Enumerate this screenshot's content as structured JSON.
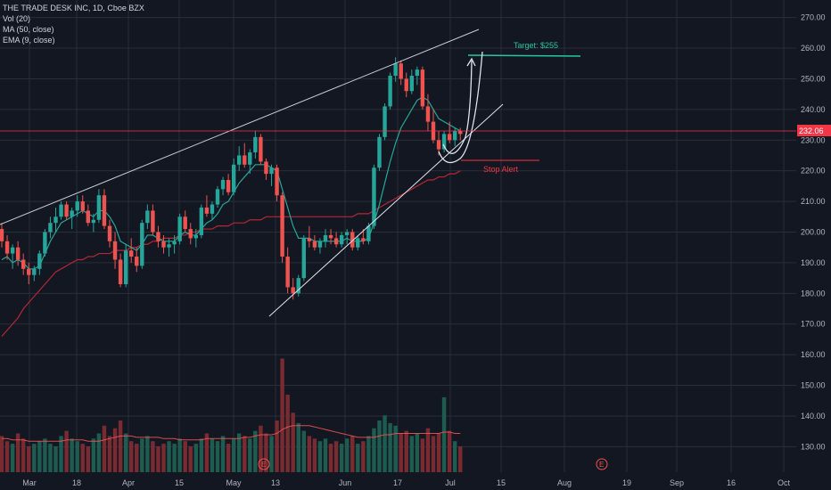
{
  "legend": {
    "symbol": "THE TRADE DESK INC, 1D, Cboe BZX",
    "vol": "Vol (20)",
    "ma": "MA (50, close)",
    "ema": "EMA (9, close)"
  },
  "price_label": "232.06",
  "target_label": "Target: $255",
  "stop_label": "Stop Alert",
  "earnings_badge": "E",
  "colors": {
    "background": "#131722",
    "up": "#26a69a",
    "down": "#ef5350",
    "ma": "#b22833",
    "ema": "#26a69a",
    "target": "#26c6a2",
    "price_line": "#f23645"
  },
  "chart_data": {
    "type": "candlestick",
    "title": "THE TRADE DESK INC, 1D, Cboe BZX",
    "y_ticks": [
      130,
      140,
      150,
      160,
      170,
      180,
      190,
      200,
      210,
      220,
      230,
      240,
      250,
      260,
      270
    ],
    "ylim": [
      127,
      273
    ],
    "x_ticks": [
      "Mar",
      "18",
      "Apr",
      "15",
      "May",
      "13",
      "Jun",
      "17",
      "Jul",
      "15",
      "Aug",
      "19",
      "Sep",
      "16",
      "Oct"
    ],
    "last_price": 232.06,
    "target": 255,
    "candles": [
      [
        201,
        203,
        195,
        197
      ],
      [
        197,
        199,
        191,
        193
      ],
      [
        193,
        196,
        188,
        195
      ],
      [
        195,
        197,
        189,
        191
      ],
      [
        191,
        193,
        186,
        188
      ],
      [
        188,
        190,
        183,
        186
      ],
      [
        186,
        189,
        184,
        188
      ],
      [
        188,
        194,
        186,
        193
      ],
      [
        193,
        201,
        192,
        200
      ],
      [
        200,
        205,
        198,
        203
      ],
      [
        203,
        208,
        200,
        205
      ],
      [
        205,
        210,
        204,
        209
      ],
      [
        209,
        210,
        204,
        205
      ],
      [
        205,
        208,
        201,
        207
      ],
      [
        207,
        212,
        205,
        210
      ],
      [
        210,
        212,
        206,
        207
      ],
      [
        207,
        209,
        202,
        203
      ],
      [
        203,
        206,
        200,
        204
      ],
      [
        204,
        214,
        203,
        212
      ],
      [
        212,
        214,
        201,
        202
      ],
      [
        202,
        204,
        195,
        197
      ],
      [
        197,
        200,
        188,
        191
      ],
      [
        191,
        193,
        182,
        183
      ],
      [
        183,
        196,
        182,
        194
      ],
      [
        194,
        198,
        190,
        192
      ],
      [
        192,
        195,
        187,
        189
      ],
      [
        189,
        204,
        188,
        203
      ],
      [
        203,
        209,
        201,
        207
      ],
      [
        207,
        209,
        199,
        200
      ],
      [
        200,
        202,
        195,
        197
      ],
      [
        197,
        199,
        193,
        195
      ],
      [
        195,
        198,
        192,
        196
      ],
      [
        196,
        199,
        193,
        197
      ],
      [
        197,
        206,
        196,
        205
      ],
      [
        205,
        207,
        200,
        201
      ],
      [
        201,
        203,
        196,
        198
      ],
      [
        198,
        201,
        195,
        199
      ],
      [
        199,
        209,
        198,
        208
      ],
      [
        208,
        212,
        205,
        206
      ],
      [
        206,
        210,
        204,
        209
      ],
      [
        209,
        215,
        208,
        214
      ],
      [
        214,
        218,
        212,
        217
      ],
      [
        217,
        219,
        212,
        213
      ],
      [
        213,
        224,
        212,
        222
      ],
      [
        222,
        228,
        220,
        225
      ],
      [
        225,
        229,
        221,
        222
      ],
      [
        222,
        227,
        219,
        226
      ],
      [
        226,
        233,
        224,
        231
      ],
      [
        231,
        232,
        222,
        223
      ],
      [
        223,
        224,
        217,
        219
      ],
      [
        219,
        222,
        215,
        221
      ],
      [
        221,
        222,
        210,
        212
      ],
      [
        212,
        213,
        190,
        192
      ],
      [
        192,
        195,
        180,
        182
      ],
      [
        182,
        185,
        178,
        180
      ],
      [
        180,
        186,
        179,
        185
      ],
      [
        185,
        199,
        184,
        198
      ],
      [
        198,
        202,
        195,
        197
      ],
      [
        197,
        199,
        194,
        195
      ],
      [
        195,
        198,
        193,
        197
      ],
      [
        197,
        201,
        195,
        199
      ],
      [
        199,
        201,
        196,
        198
      ],
      [
        198,
        200,
        195,
        196
      ],
      [
        196,
        200,
        195,
        199
      ],
      [
        199,
        201,
        196,
        200
      ],
      [
        200,
        201,
        194,
        195
      ],
      [
        195,
        199,
        194,
        198
      ],
      [
        198,
        201,
        196,
        197
      ],
      [
        197,
        203,
        196,
        202
      ],
      [
        202,
        222,
        201,
        221
      ],
      [
        221,
        232,
        220,
        231
      ],
      [
        231,
        242,
        230,
        241
      ],
      [
        241,
        252,
        240,
        251
      ],
      [
        251,
        257,
        249,
        255
      ],
      [
        255,
        256,
        248,
        250
      ],
      [
        250,
        252,
        244,
        246
      ],
      [
        246,
        253,
        245,
        251
      ],
      [
        251,
        254,
        248,
        253
      ],
      [
        253,
        254,
        240,
        241
      ],
      [
        241,
        245,
        233,
        236
      ],
      [
        236,
        240,
        229,
        230
      ],
      [
        230,
        233,
        225,
        227
      ],
      [
        227,
        233,
        226,
        232
      ],
      [
        232,
        236,
        229,
        230
      ],
      [
        230,
        234,
        228,
        233
      ],
      [
        233,
        234,
        230,
        232
      ]
    ],
    "volumes": [
      28,
      24,
      22,
      30,
      26,
      20,
      22,
      24,
      26,
      22,
      20,
      28,
      32,
      26,
      24,
      22,
      20,
      26,
      30,
      36,
      28,
      34,
      40,
      30,
      24,
      22,
      26,
      28,
      24,
      20,
      22,
      24,
      22,
      26,
      24,
      20,
      22,
      26,
      30,
      26,
      24,
      28,
      22,
      26,
      30,
      28,
      26,
      32,
      36,
      30,
      28,
      40,
      88,
      60,
      46,
      38,
      32,
      28,
      26,
      24,
      26,
      22,
      24,
      22,
      26,
      28,
      22,
      24,
      28,
      34,
      40,
      44,
      38,
      36,
      30,
      32,
      28,
      30,
      26,
      34,
      28,
      30,
      58,
      32,
      24,
      20
    ],
    "ma50": [
      166,
      168,
      170,
      172,
      175,
      177,
      179,
      181,
      183,
      185,
      187,
      188,
      189,
      190,
      191,
      191,
      192,
      192,
      193,
      193,
      193,
      194,
      194,
      194,
      195,
      195,
      196,
      196,
      197,
      197,
      198,
      198,
      198,
      199,
      199,
      200,
      200,
      201,
      201,
      201,
      202,
      202,
      202,
      203,
      203,
      203,
      204,
      204,
      204,
      205,
      205,
      205,
      205,
      205,
      205,
      205,
      205,
      205,
      205,
      205,
      205,
      205,
      205,
      205,
      205,
      205,
      206,
      206,
      206,
      207,
      208,
      209,
      210,
      211,
      212,
      213,
      214,
      215,
      216,
      217,
      217,
      218,
      218,
      219,
      219,
      220
    ],
    "ema9": [
      191,
      192,
      190,
      191,
      190,
      188,
      188,
      189,
      193,
      197,
      200,
      203,
      204,
      205,
      206,
      207,
      206,
      205,
      207,
      207,
      205,
      202,
      197,
      196,
      195,
      194,
      196,
      199,
      199,
      198,
      197,
      197,
      197,
      199,
      200,
      199,
      199,
      201,
      203,
      204,
      206,
      209,
      210,
      213,
      216,
      218,
      220,
      222,
      222,
      222,
      221,
      220,
      214,
      208,
      202,
      198,
      198,
      198,
      197,
      197,
      197,
      197,
      197,
      197,
      198,
      197,
      197,
      197,
      198,
      203,
      209,
      216,
      223,
      229,
      234,
      237,
      240,
      243,
      244,
      243,
      240,
      237,
      236,
      235,
      234,
      233
    ],
    "vol_ma": [
      26,
      26,
      25,
      25,
      25,
      24,
      24,
      24,
      24,
      24,
      24,
      24,
      25,
      25,
      25,
      25,
      24,
      24,
      24,
      25,
      26,
      27,
      28,
      28,
      28,
      27,
      27,
      27,
      27,
      27,
      26,
      26,
      26,
      25,
      25,
      25,
      25,
      25,
      26,
      26,
      26,
      26,
      26,
      26,
      26,
      27,
      27,
      28,
      29,
      29,
      29,
      30,
      33,
      35,
      36,
      36,
      36,
      36,
      35,
      34,
      33,
      32,
      31,
      30,
      29,
      28,
      27,
      27,
      27,
      27,
      28,
      29,
      29,
      30,
      30,
      30,
      30,
      30,
      30,
      30,
      30,
      30,
      31,
      31,
      30,
      30
    ]
  }
}
